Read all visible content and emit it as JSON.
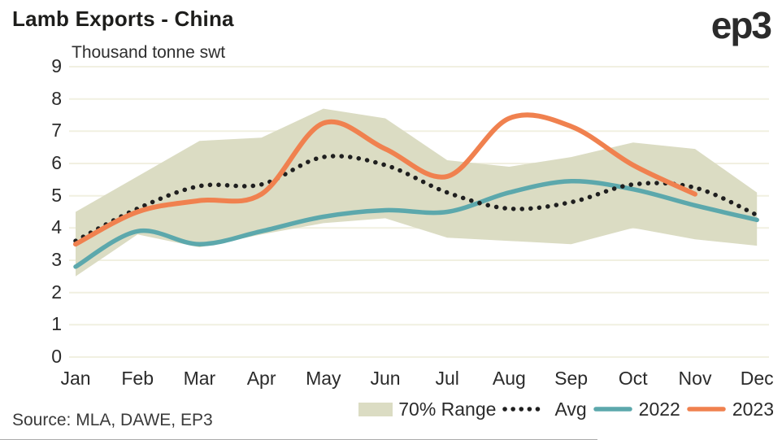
{
  "header": {
    "title": "Lamb Exports - China",
    "logo": "ep3"
  },
  "footer": {
    "source": "Source: MLA, DAWE, EP3"
  },
  "chart_data": {
    "type": "line",
    "title": "Lamb Exports - China",
    "ylabel": "Thousand tonne swt",
    "xlabel": "",
    "ylim": [
      0,
      9
    ],
    "y_ticks_top_to_bottom": [
      9,
      8,
      7,
      6,
      5,
      4,
      3,
      2,
      1,
      0
    ],
    "grid": true,
    "legend_position": "bottom-right",
    "categories": [
      "Jan",
      "Feb",
      "Mar",
      "Apr",
      "May",
      "Jun",
      "Jul",
      "Aug",
      "Sep",
      "Oct",
      "Nov",
      "Dec"
    ],
    "band": {
      "name": "70% Range",
      "low": [
        2.5,
        3.8,
        3.4,
        3.8,
        4.15,
        4.3,
        3.7,
        3.6,
        3.5,
        4.0,
        3.65,
        3.45
      ],
      "high": [
        4.5,
        5.6,
        6.7,
        6.8,
        7.7,
        7.4,
        6.1,
        5.9,
        6.2,
        6.65,
        6.45,
        5.1
      ],
      "color": "#DBDCC3"
    },
    "series": [
      {
        "name": "Avg",
        "style": "dotted",
        "color": "#1F1F1F",
        "values": [
          3.6,
          4.6,
          5.3,
          5.35,
          6.2,
          5.95,
          5.1,
          4.6,
          4.8,
          5.35,
          5.25,
          4.4
        ]
      },
      {
        "name": "2022",
        "style": "solid",
        "color": "#5CA8AC",
        "values": [
          2.8,
          3.9,
          3.5,
          3.9,
          4.35,
          4.55,
          4.5,
          5.1,
          5.45,
          5.2,
          4.7,
          4.25
        ]
      },
      {
        "name": "2023",
        "style": "solid",
        "color": "#F0814F",
        "values": [
          3.5,
          4.5,
          4.85,
          5.05,
          7.25,
          6.45,
          5.6,
          7.4,
          7.15,
          5.95,
          5.05,
          null
        ]
      }
    ],
    "colors": {
      "grid": "#F1F0E1",
      "band": "#DBDCC3",
      "avg": "#1F1F1F",
      "s2022": "#5CA8AC",
      "s2023": "#F0814F",
      "text": "#2b2b2b"
    }
  }
}
